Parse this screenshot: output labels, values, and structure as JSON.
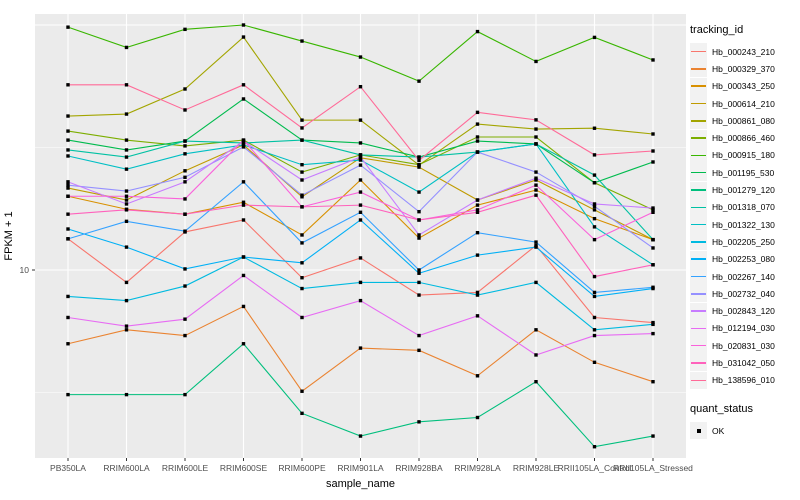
{
  "chart_data": {
    "type": "line",
    "title": "",
    "xlabel": "sample_name",
    "ylabel": "FPKM + 1",
    "y_scale": "log10",
    "y_tick_labels": [
      "10"
    ],
    "y_tick_values": [
      10
    ],
    "y_major_grid": [
      10,
      100
    ],
    "y_minor_grid": [
      3.162,
      31.62
    ],
    "ylim_approx": [
      1.7,
      110
    ],
    "grid": true,
    "panel_bg": "#EBEBEB",
    "grid_color": "#FFFFFF",
    "axis_text_color": "#4D4D4D",
    "point_shape": "filled-square",
    "point_color": "#000000",
    "categories": [
      "PB350LA",
      "RRIM600LA",
      "RRIM600LE",
      "RRIM600SE",
      "RRIM600PE",
      "RRIM901LA",
      "RRIM928BA",
      "RRIM928LA",
      "RRIM928LE",
      "RRII105LA_Control",
      "RRII105LA_Stressed"
    ],
    "series": [
      {
        "name": "Hb_000243_210",
        "color": "#F8766D",
        "values": [
          13.4,
          8.9,
          14.3,
          16.0,
          9.3,
          11.2,
          7.9,
          8.1,
          12.6,
          6.4,
          6.1
        ]
      },
      {
        "name": "Hb_000329_370",
        "color": "#EA8331",
        "values": [
          5.0,
          5.7,
          5.4,
          7.1,
          3.2,
          4.8,
          4.7,
          3.7,
          5.7,
          4.2,
          3.5
        ]
      },
      {
        "name": "Hb_000343_250",
        "color": "#D89000",
        "values": [
          20.0,
          17.7,
          16.9,
          18.9,
          13.9,
          23.3,
          13.5,
          18.4,
          21.2,
          16.2,
          13.3
        ]
      },
      {
        "name": "Hb_000614_210",
        "color": "#C09B00",
        "values": [
          21.6,
          19.3,
          25.4,
          32.4,
          19.9,
          28.7,
          26.3,
          19.3,
          23.3,
          17.6,
          13.3
        ]
      },
      {
        "name": "Hb_000861_080",
        "color": "#A3A500",
        "values": [
          42.5,
          43.3,
          54.8,
          89.3,
          40.9,
          40.9,
          26.8,
          39.4,
          37.6,
          37.9,
          35.9
        ]
      },
      {
        "name": "Hb_000866_460",
        "color": "#7CAE00",
        "values": [
          36.9,
          33.9,
          32.1,
          33.9,
          25.1,
          29.5,
          26.9,
          34.9,
          34.9,
          22.7,
          17.6
        ]
      },
      {
        "name": "Hb_000915_180",
        "color": "#39B600",
        "values": [
          98.0,
          81.0,
          96.0,
          100.0,
          86.0,
          74.0,
          59.0,
          94.0,
          71.0,
          89.0,
          72.0
        ]
      },
      {
        "name": "Hb_001195_530",
        "color": "#00BB4E",
        "values": [
          33.9,
          30.9,
          33.6,
          49.9,
          33.9,
          33.0,
          28.9,
          33.6,
          32.7,
          22.7,
          27.6
        ]
      },
      {
        "name": "Hb_001279_120",
        "color": "#00BF7D",
        "values": [
          3.1,
          3.1,
          3.1,
          5.0,
          2.6,
          2.1,
          2.4,
          2.5,
          3.5,
          1.9,
          2.1
        ]
      },
      {
        "name": "Hb_001318_070",
        "color": "#00C1A3",
        "values": [
          30.9,
          28.9,
          33.6,
          33.0,
          33.9,
          29.5,
          28.9,
          30.3,
          32.7,
          24.4,
          13.3
        ]
      },
      {
        "name": "Hb_001322_130",
        "color": "#00BFC4",
        "values": [
          29.2,
          25.8,
          29.8,
          32.4,
          26.9,
          28.1,
          20.8,
          30.3,
          32.7,
          15.0,
          10.5
        ]
      },
      {
        "name": "Hb_002205_250",
        "color": "#00BAE0",
        "values": [
          7.8,
          7.5,
          8.6,
          11.3,
          8.4,
          8.9,
          8.9,
          7.9,
          8.9,
          5.7,
          6.0
        ]
      },
      {
        "name": "Hb_002253_080",
        "color": "#00B0F6",
        "values": [
          14.7,
          12.4,
          10.1,
          11.3,
          10.7,
          16.0,
          9.7,
          11.5,
          12.4,
          7.8,
          8.4
        ]
      },
      {
        "name": "Hb_002267_140",
        "color": "#35A2FF",
        "values": [
          13.4,
          15.8,
          14.4,
          22.9,
          12.9,
          17.2,
          10.0,
          14.2,
          13.0,
          8.1,
          8.5
        ]
      },
      {
        "name": "Hb_002732_040",
        "color": "#9590FF",
        "values": [
          22.2,
          21.0,
          23.9,
          31.8,
          20.2,
          26.8,
          17.3,
          30.3,
          25.1,
          18.2,
          12.3
        ]
      },
      {
        "name": "Hb_002843_120",
        "color": "#C77CFF",
        "values": [
          22.9,
          18.6,
          22.9,
          33.6,
          23.3,
          28.9,
          13.9,
          19.3,
          23.7,
          18.6,
          17.9
        ]
      },
      {
        "name": "Hb_012194_030",
        "color": "#E76BF3",
        "values": [
          6.4,
          5.9,
          6.3,
          9.5,
          6.4,
          7.5,
          5.4,
          6.5,
          4.5,
          5.4,
          5.5
        ]
      },
      {
        "name": "Hb_020831_030",
        "color": "#FA62DB",
        "values": [
          20.0,
          20.0,
          19.5,
          33.9,
          18.1,
          20.8,
          16.0,
          17.6,
          22.2,
          13.3,
          17.2
        ]
      },
      {
        "name": "Hb_031042_050",
        "color": "#FF62BC",
        "values": [
          16.9,
          17.6,
          16.9,
          18.4,
          18.1,
          18.4,
          16.0,
          17.2,
          20.2,
          9.4,
          10.5
        ]
      },
      {
        "name": "Hb_138596_010",
        "color": "#FF6A98",
        "values": [
          57.0,
          57.0,
          45.0,
          57.0,
          38.0,
          56.0,
          28.0,
          44.0,
          41.0,
          29.5,
          30.6
        ]
      }
    ],
    "legend_position": "right"
  },
  "legend": {
    "tracking_title": "tracking_id",
    "quant_title": "quant_status",
    "quant_items": [
      "OK"
    ]
  }
}
